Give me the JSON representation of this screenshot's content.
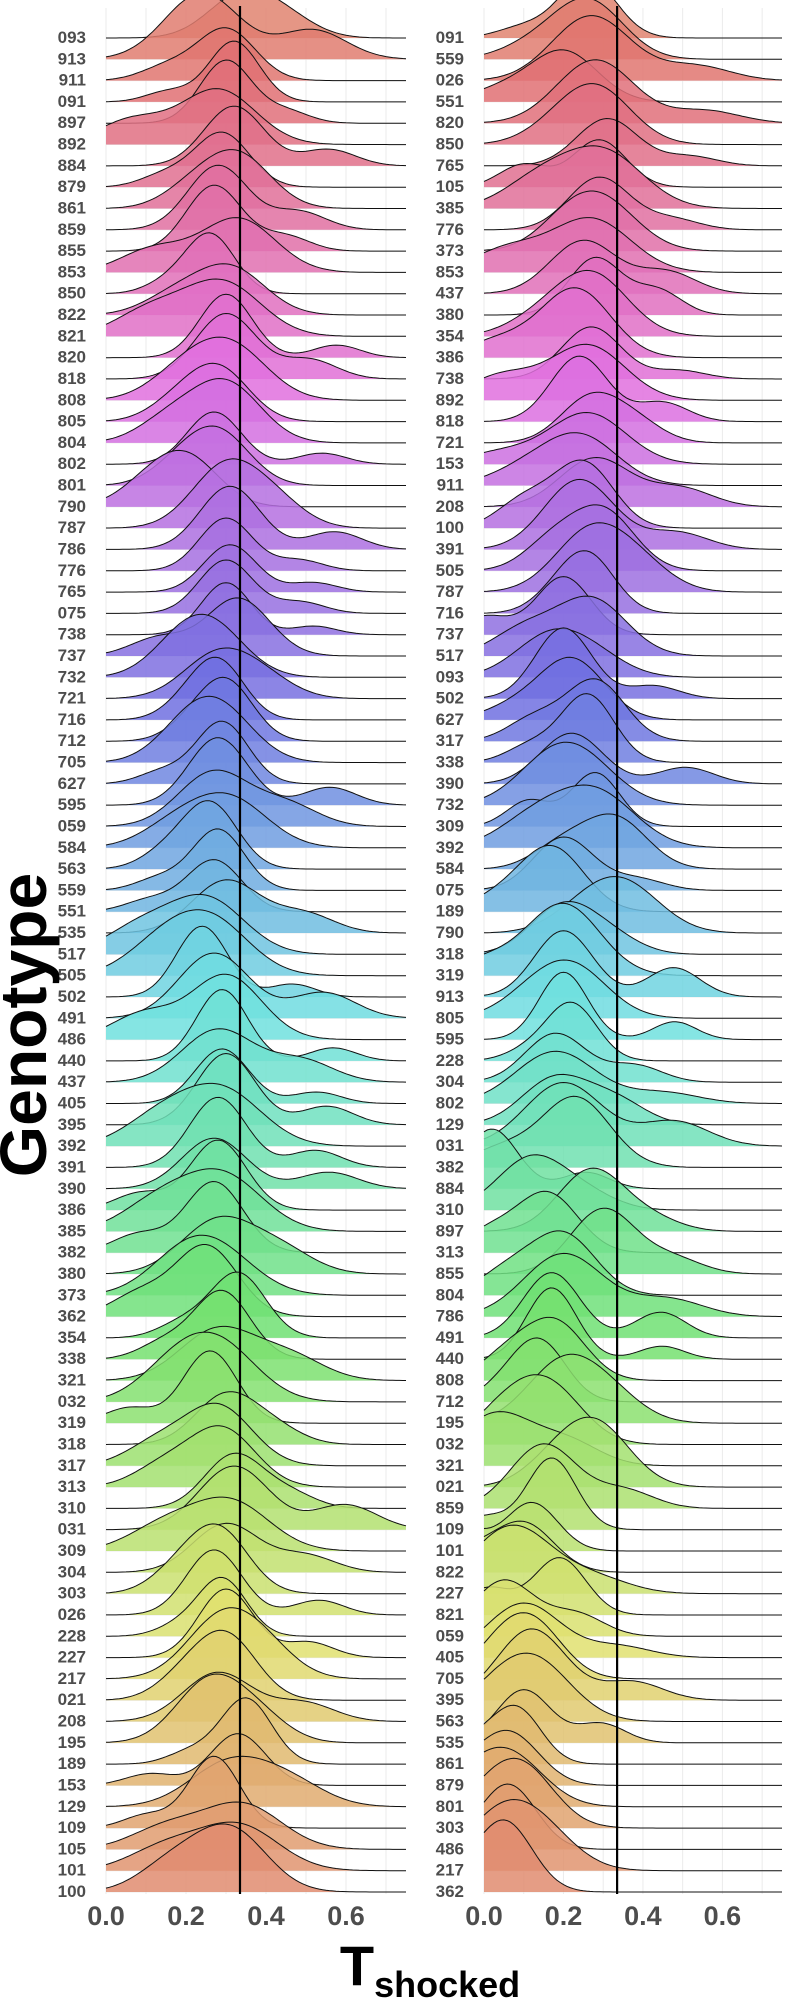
{
  "chart_data": {
    "type": "ridgeline",
    "ylabel": "Genotype",
    "xlabel_main": "T",
    "xlabel_sub": "shocked",
    "xlim": [
      0,
      0.75
    ],
    "x_ticks": [
      "0.0",
      "0.2",
      "0.4",
      "0.6"
    ],
    "x_tick_values": [
      0,
      0.2,
      0.4,
      0.6
    ],
    "reference_line_x": 0.335,
    "grid": true,
    "legend": "none",
    "panels": [
      {
        "name": "left",
        "genotypes": [
          "093",
          "913",
          "911",
          "091",
          "897",
          "892",
          "884",
          "879",
          "861",
          "859",
          "855",
          "853",
          "850",
          "822",
          "821",
          "820",
          "818",
          "808",
          "805",
          "804",
          "802",
          "801",
          "790",
          "787",
          "786",
          "776",
          "765",
          "075",
          "738",
          "737",
          "732",
          "721",
          "716",
          "712",
          "705",
          "627",
          "595",
          "059",
          "584",
          "563",
          "559",
          "551",
          "535",
          "517",
          "505",
          "502",
          "491",
          "486",
          "440",
          "437",
          "405",
          "395",
          "392",
          "391",
          "390",
          "386",
          "385",
          "382",
          "380",
          "373",
          "362",
          "354",
          "338",
          "321",
          "032",
          "319",
          "318",
          "317",
          "313",
          "310",
          "031",
          "309",
          "304",
          "303",
          "026",
          "228",
          "227",
          "217",
          "021",
          "208",
          "195",
          "189",
          "153",
          "129",
          "109",
          "105",
          "101",
          "100"
        ],
        "peaks": [
          0.34,
          0.24,
          0.3,
          0.32,
          0.3,
          0.28,
          0.32,
          0.29,
          0.33,
          0.28,
          0.27,
          0.33,
          0.26,
          0.31,
          0.29,
          0.3,
          0.3,
          0.31,
          0.28,
          0.3,
          0.27,
          0.28,
          0.2,
          0.3,
          0.31,
          0.3,
          0.31,
          0.3,
          0.3,
          0.33,
          0.26,
          0.28,
          0.28,
          0.3,
          0.28,
          0.29,
          0.28,
          0.27,
          0.31,
          0.26,
          0.28,
          0.27,
          0.3,
          0.25,
          0.26,
          0.24,
          0.27,
          0.3,
          0.29,
          0.28,
          0.29,
          0.3,
          0.29,
          0.28,
          0.27,
          0.28,
          0.29,
          0.27,
          0.28,
          0.27,
          0.25,
          0.33,
          0.29,
          0.28,
          0.28,
          0.26,
          0.3,
          0.28,
          0.29,
          0.32,
          0.32,
          0.31,
          0.3,
          0.28,
          0.27,
          0.29,
          0.3,
          0.29,
          0.3,
          0.28,
          0.26,
          0.35,
          0.33,
          0.31,
          0.27,
          0.34,
          0.33,
          0.31
        ]
      },
      {
        "name": "right",
        "genotypes": [
          "091",
          "559",
          "026",
          "551",
          "820",
          "850",
          "765",
          "105",
          "385",
          "776",
          "373",
          "853",
          "437",
          "380",
          "354",
          "386",
          "738",
          "892",
          "818",
          "721",
          "153",
          "911",
          "208",
          "100",
          "391",
          "505",
          "787",
          "716",
          "737",
          "517",
          "093",
          "502",
          "627",
          "317",
          "338",
          "390",
          "732",
          "309",
          "392",
          "584",
          "075",
          "189",
          "790",
          "318",
          "319",
          "913",
          "805",
          "595",
          "228",
          "304",
          "802",
          "129",
          "031",
          "382",
          "884",
          "310",
          "897",
          "313",
          "855",
          "804",
          "786",
          "491",
          "440",
          "808",
          "712",
          "195",
          "032",
          "321",
          "021",
          "859",
          "109",
          "101",
          "822",
          "227",
          "821",
          "059",
          "405",
          "705",
          "395",
          "563",
          "535",
          "861",
          "879",
          "801",
          "303",
          "486",
          "217",
          "362"
        ],
        "peaks": [
          0.26,
          0.26,
          0.27,
          0.2,
          0.28,
          0.28,
          0.31,
          0.29,
          0.3,
          0.29,
          0.3,
          0.27,
          0.25,
          0.28,
          0.27,
          0.23,
          0.27,
          0.26,
          0.24,
          0.27,
          0.26,
          0.24,
          0.28,
          0.25,
          0.24,
          0.3,
          0.27,
          0.26,
          0.2,
          0.27,
          0.17,
          0.2,
          0.22,
          0.28,
          0.26,
          0.22,
          0.23,
          0.28,
          0.28,
          0.33,
          0.2,
          0.17,
          0.35,
          0.2,
          0.2,
          0.2,
          0.22,
          0.2,
          0.22,
          0.18,
          0.18,
          0.18,
          0.2,
          0.23,
          0.02,
          0.12,
          0.27,
          0.16,
          0.3,
          0.2,
          0.2,
          0.17,
          0.17,
          0.18,
          0.14,
          0.2,
          0.16,
          0.03,
          0.28,
          0.15,
          0.17,
          0.12,
          0.1,
          0.07,
          0.19,
          0.05,
          0.1,
          0.12,
          0.12,
          0.12,
          0.1,
          0.08,
          0.06,
          0.06,
          0.09,
          0.06,
          0.05,
          0.05
        ]
      }
    ]
  }
}
